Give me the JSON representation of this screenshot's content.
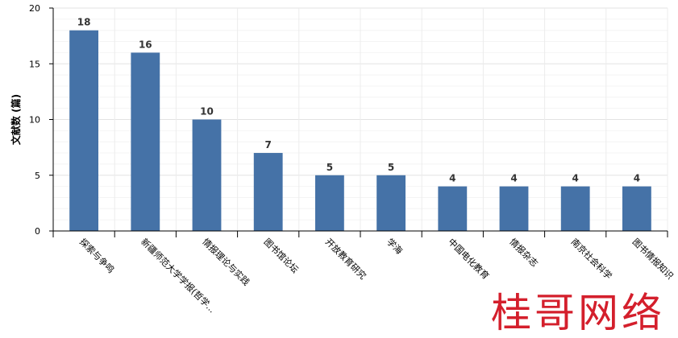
{
  "chart_data": {
    "type": "bar",
    "ylabel": "文献数 (篇)",
    "ylim": [
      0,
      20
    ],
    "y_ticks": [
      0,
      5,
      10,
      15,
      20
    ],
    "grid": true,
    "bar_color": "#4572A7",
    "categories": [
      "探索与争鸣",
      "新疆师范大学学报(哲学...",
      "情报理论与实践",
      "图书馆论坛",
      "开放教育研究",
      "学海",
      "中国电化教育",
      "情报杂志",
      "南京社会科学",
      "图书情报知识"
    ],
    "values": [
      18,
      16,
      10,
      7,
      5,
      5,
      4,
      4,
      4,
      4
    ]
  },
  "watermark": "桂哥网络"
}
